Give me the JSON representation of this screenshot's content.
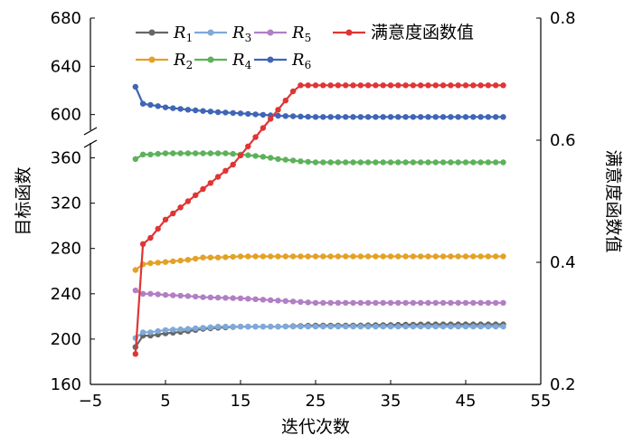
{
  "chart_data": {
    "type": "line",
    "xlabel": "迭代次数",
    "ylabel_left": "目标函数",
    "ylabel_right": "满意度函数值",
    "x_ticks": [
      "−5",
      "5",
      "15",
      "25",
      "35",
      "45",
      "55"
    ],
    "x_range": [
      -5,
      55
    ],
    "y_left_ticks": [
      "160",
      "200",
      "240",
      "280",
      "320",
      "360",
      "600",
      "640",
      "680"
    ],
    "y_left_segments": [
      [
        160,
        370
      ],
      [
        590,
        680
      ]
    ],
    "y_right_ticks": [
      "0.2",
      "0.4",
      "0.6",
      "0.8"
    ],
    "y_right_range": [
      0.2,
      0.8
    ],
    "legend_position": "top",
    "series": [
      {
        "name": "R",
        "sub": "1",
        "axis": "left",
        "color": "#666666",
        "x": [
          1,
          2,
          3,
          5,
          8,
          10,
          12,
          15,
          20,
          25,
          30,
          40,
          50
        ],
        "y": [
          193,
          203,
          203,
          205,
          207,
          209,
          210,
          211,
          211,
          212,
          212,
          213,
          213
        ]
      },
      {
        "name": "R",
        "sub": "2",
        "axis": "left",
        "color": "#e3a126",
        "x": [
          1,
          2,
          3,
          5,
          8,
          10,
          12,
          15,
          20,
          25,
          30,
          40,
          50
        ],
        "y": [
          261,
          266,
          267,
          268,
          270,
          272,
          272,
          273,
          273,
          273,
          273,
          273,
          273
        ]
      },
      {
        "name": "R",
        "sub": "3",
        "axis": "left",
        "color": "#7fa9d8",
        "x": [
          1,
          2,
          3,
          5,
          8,
          10,
          12,
          15,
          20,
          25,
          30,
          40,
          50
        ],
        "y": [
          201,
          206,
          206,
          208,
          209,
          210,
          211,
          211,
          211,
          211,
          211,
          211,
          211
        ]
      },
      {
        "name": "R",
        "sub": "4",
        "axis": "left",
        "color": "#5db15a",
        "x": [
          1,
          2,
          3,
          5,
          8,
          10,
          13,
          15,
          18,
          20,
          23,
          25,
          30,
          40,
          50
        ],
        "y": [
          359,
          363,
          363,
          364,
          364,
          364,
          364,
          363,
          361,
          359,
          357,
          356,
          356,
          356,
          356
        ]
      },
      {
        "name": "R",
        "sub": "5",
        "axis": "left",
        "color": "#b17fc4",
        "x": [
          1,
          2,
          3,
          5,
          8,
          10,
          15,
          20,
          25,
          30,
          40,
          50
        ],
        "y": [
          243,
          240,
          240,
          239,
          238,
          237,
          236,
          234,
          232,
          232,
          232,
          232
        ]
      },
      {
        "name": "R",
        "sub": "6",
        "axis": "left",
        "color": "#3f65b5",
        "x": [
          1,
          2,
          3,
          5,
          8,
          10,
          12,
          15,
          20,
          25,
          30,
          40,
          50
        ],
        "y": [
          623,
          609,
          608,
          606,
          604,
          603,
          602,
          601,
          599,
          598,
          598,
          598,
          598
        ]
      },
      {
        "name": "满意度函数值",
        "axis": "right",
        "color": "#e03535",
        "x": [
          1,
          2,
          3,
          5,
          8,
          10,
          12,
          14,
          16,
          18,
          20,
          22,
          23,
          24,
          25,
          30,
          40,
          50
        ],
        "y": [
          0.25,
          0.43,
          0.44,
          0.47,
          0.5,
          0.52,
          0.54,
          0.56,
          0.59,
          0.62,
          0.65,
          0.68,
          0.69,
          0.69,
          0.69,
          0.69,
          0.69,
          0.69
        ]
      }
    ]
  }
}
